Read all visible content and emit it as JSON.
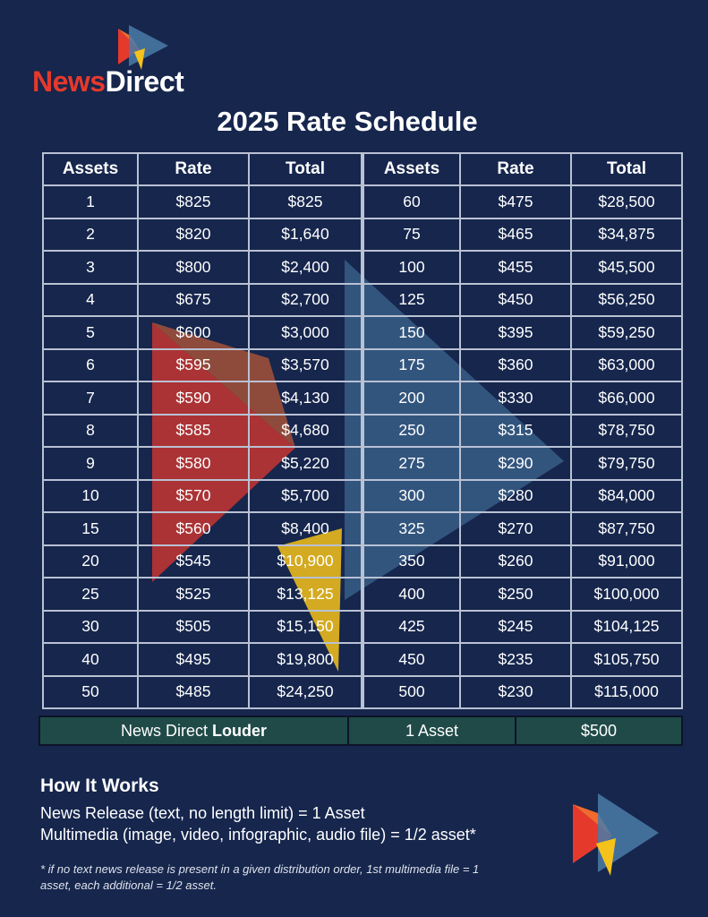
{
  "brand": {
    "word_news": "News",
    "word_direct": "Direct",
    "logo_icon": "newsdirect-play-logo-icon"
  },
  "title": "2025 Rate Schedule",
  "table": {
    "headers": [
      "Assets",
      "Rate",
      "Total",
      "Assets",
      "Rate",
      "Total"
    ],
    "rows": [
      [
        "1",
        "$825",
        "$825",
        "60",
        "$475",
        "$28,500"
      ],
      [
        "2",
        "$820",
        "$1,640",
        "75",
        "$465",
        "$34,875"
      ],
      [
        "3",
        "$800",
        "$2,400",
        "100",
        "$455",
        "$45,500"
      ],
      [
        "4",
        "$675",
        "$2,700",
        "125",
        "$450",
        "$56,250"
      ],
      [
        "5",
        "$600",
        "$3,000",
        "150",
        "$395",
        "$59,250"
      ],
      [
        "6",
        "$595",
        "$3,570",
        "175",
        "$360",
        "$63,000"
      ],
      [
        "7",
        "$590",
        "$4,130",
        "200",
        "$330",
        "$66,000"
      ],
      [
        "8",
        "$585",
        "$4,680",
        "250",
        "$315",
        "$78,750"
      ],
      [
        "9",
        "$580",
        "$5,220",
        "275",
        "$290",
        "$79,750"
      ],
      [
        "10",
        "$570",
        "$5,700",
        "300",
        "$280",
        "$84,000"
      ],
      [
        "15",
        "$560",
        "$8,400",
        "325",
        "$270",
        "$87,750"
      ],
      [
        "20",
        "$545",
        "$10,900",
        "350",
        "$260",
        "$91,000"
      ],
      [
        "25",
        "$525",
        "$13,125",
        "400",
        "$250",
        "$100,000"
      ],
      [
        "30",
        "$505",
        "$15,150",
        "425",
        "$245",
        "$104,125"
      ],
      [
        "40",
        "$495",
        "$19,800",
        "450",
        "$235",
        "$105,750"
      ],
      [
        "50",
        "$485",
        "$24,250",
        "500",
        "$230",
        "$115,000"
      ]
    ]
  },
  "louder": {
    "name_prefix": "News Direct ",
    "name_bold": "Louder",
    "assets": "1 Asset",
    "price": "$500"
  },
  "how_it_works": {
    "heading": "How It Works",
    "lines": [
      "News Release (text, no length limit) = 1 Asset",
      "Multimedia (image, video, infographic, audio file) = 1/2 asset*"
    ],
    "footnote": "* if no text news release is present in a given distribution order, 1st multimedia file = 1 asset, each additional = 1/2 asset."
  },
  "colors": {
    "background": "#16264d",
    "red": "#e5392c",
    "orange": "#f26a2e",
    "yellow": "#f4c21a",
    "blue": "#4a7ba8",
    "louder_bg": "#1f4a48"
  }
}
